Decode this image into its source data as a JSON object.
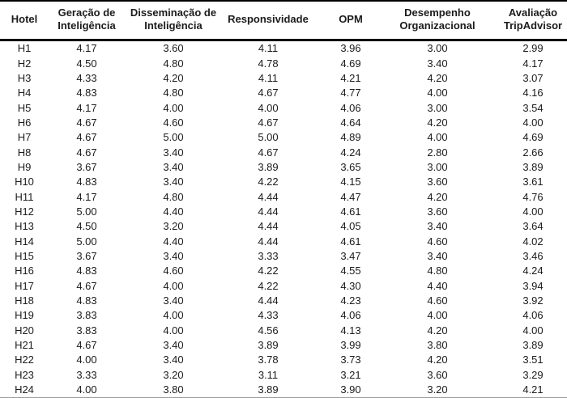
{
  "colors": {
    "text": "#1b1b1b",
    "rule": "#000000",
    "background": "#ffffff"
  },
  "table": {
    "columns": [
      {
        "key": "hotel",
        "label": "Hotel"
      },
      {
        "key": "geracao-de-inteligencia",
        "label": "Geração de\nInteligência"
      },
      {
        "key": "disseminacao-de-inteligencia",
        "label": "Disseminação de\nInteligência"
      },
      {
        "key": "responsividade",
        "label": "Responsividade"
      },
      {
        "key": "opm",
        "label": "OPM"
      },
      {
        "key": "desempenho-organizacional",
        "label": "Desempenho\nOrganizacional"
      },
      {
        "key": "avaliacao-tripadvisor",
        "label": "Avaliação\nTripAdvisor"
      }
    ],
    "rows": [
      [
        "H1",
        "4.17",
        "3.60",
        "4.11",
        "3.96",
        "3.00",
        "2.99"
      ],
      [
        "H2",
        "4.50",
        "4.80",
        "4.78",
        "4.69",
        "3.40",
        "4.17"
      ],
      [
        "H3",
        "4.33",
        "4.20",
        "4.11",
        "4.21",
        "4.20",
        "3.07"
      ],
      [
        "H4",
        "4.83",
        "4.80",
        "4.67",
        "4.77",
        "4.00",
        "4.16"
      ],
      [
        "H5",
        "4.17",
        "4.00",
        "4.00",
        "4.06",
        "3.00",
        "3.54"
      ],
      [
        "H6",
        "4.67",
        "4.60",
        "4.67",
        "4.64",
        "4.20",
        "4.00"
      ],
      [
        "H7",
        "4.67",
        "5.00",
        "5.00",
        "4.89",
        "4.00",
        "4.69"
      ],
      [
        "H8",
        "4.67",
        "3.40",
        "4.67",
        "4.24",
        "2.80",
        "2.66"
      ],
      [
        "H9",
        "3.67",
        "3.40",
        "3.89",
        "3.65",
        "3.00",
        "3.89"
      ],
      [
        "H10",
        "4.83",
        "3.40",
        "4.22",
        "4.15",
        "3.60",
        "3.61"
      ],
      [
        "H11",
        "4.17",
        "4.80",
        "4.44",
        "4.47",
        "4.20",
        "4.76"
      ],
      [
        "H12",
        "5.00",
        "4.40",
        "4.44",
        "4.61",
        "3.60",
        "4.00"
      ],
      [
        "H13",
        "4.50",
        "3.20",
        "4.44",
        "4.05",
        "3.40",
        "3.64"
      ],
      [
        "H14",
        "5.00",
        "4.40",
        "4.44",
        "4.61",
        "4.60",
        "4.02"
      ],
      [
        "H15",
        "3.67",
        "3.40",
        "3.33",
        "3.47",
        "3.40",
        "3.46"
      ],
      [
        "H16",
        "4.83",
        "4.60",
        "4.22",
        "4.55",
        "4.80",
        "4.24"
      ],
      [
        "H17",
        "4.67",
        "4.00",
        "4.22",
        "4.30",
        "4.40",
        "3.94"
      ],
      [
        "H18",
        "4.83",
        "3.40",
        "4.44",
        "4.23",
        "4.60",
        "3.92"
      ],
      [
        "H19",
        "3.83",
        "4.00",
        "4.33",
        "4.06",
        "4.00",
        "4.06"
      ],
      [
        "H20",
        "3.83",
        "4.00",
        "4.56",
        "4.13",
        "4.20",
        "4.00"
      ],
      [
        "H21",
        "4.67",
        "3.40",
        "3.89",
        "3.99",
        "3.80",
        "3.89"
      ],
      [
        "H22",
        "4.00",
        "3.40",
        "3.78",
        "3.73",
        "4.20",
        "3.51"
      ],
      [
        "H23",
        "3.33",
        "3.20",
        "3.11",
        "3.21",
        "3.60",
        "3.29"
      ],
      [
        "H24",
        "4.00",
        "3.80",
        "3.89",
        "3.90",
        "3.20",
        "4.21"
      ]
    ]
  }
}
